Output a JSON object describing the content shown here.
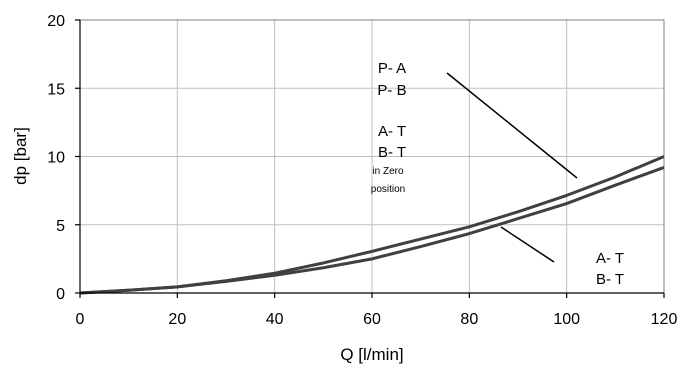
{
  "chart_data": {
    "type": "line",
    "title": "",
    "xlabel": "Q [l/min]",
    "ylabel": "dp [bar]",
    "xlim": [
      0,
      120
    ],
    "ylim": [
      0,
      20
    ],
    "x_ticks": [
      "0",
      "20",
      "40",
      "60",
      "80",
      "100",
      "120"
    ],
    "y_ticks": [
      "0",
      "5",
      "10",
      "15",
      "20"
    ],
    "grid": true,
    "colors": {
      "line": "#404040",
      "grid": "#bfbfbf"
    },
    "series": [
      {
        "x": [
          0,
          10,
          20,
          30,
          40,
          50,
          60,
          70,
          80,
          90,
          100,
          110,
          120
        ],
        "y": [
          0,
          0.2,
          0.45,
          0.9,
          1.45,
          2.2,
          3.05,
          3.95,
          4.85,
          5.95,
          7.15,
          8.5,
          10.0
        ]
      },
      {
        "x": [
          0,
          10,
          20,
          30,
          40,
          50,
          60,
          70,
          80,
          90,
          100,
          110,
          120
        ],
        "y": [
          0,
          0.2,
          0.45,
          0.85,
          1.3,
          1.85,
          2.5,
          3.4,
          4.35,
          5.45,
          6.55,
          7.9,
          9.2
        ]
      }
    ],
    "annotations": {
      "upper": {
        "lines": [
          "P- A",
          "P- B",
          "",
          "A- T",
          "B- T"
        ],
        "small": [
          "in Zero",
          "position"
        ]
      },
      "lower": {
        "lines": [
          "A- T",
          "B- T"
        ]
      }
    }
  }
}
